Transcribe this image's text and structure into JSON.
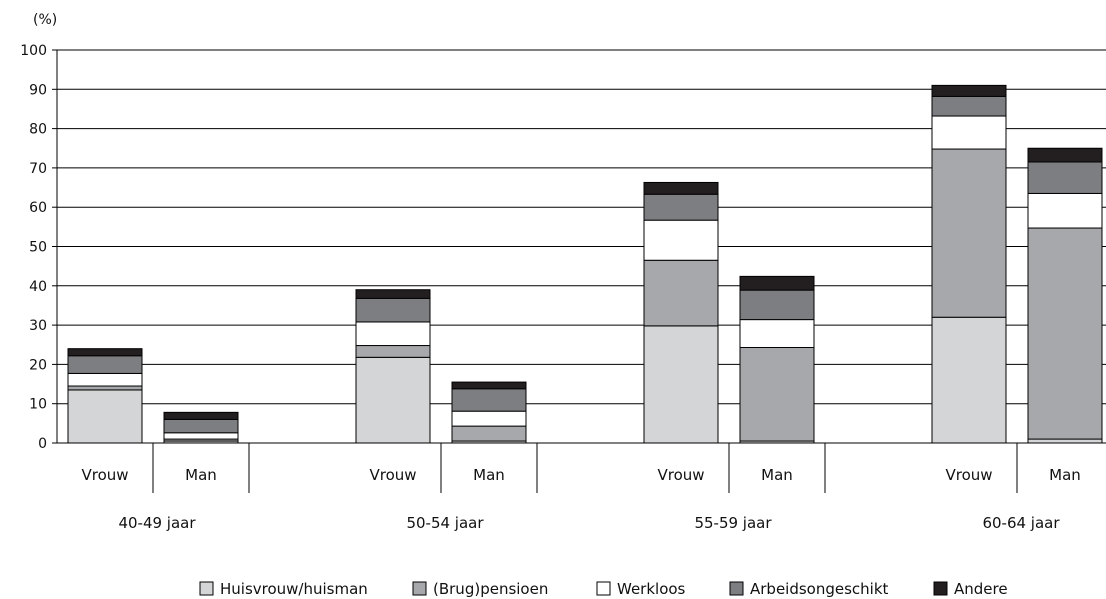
{
  "chart_data": {
    "type": "bar",
    "stacked": true,
    "y_unit_label": "(%)",
    "ylim": [
      0,
      100
    ],
    "y_ticks": [
      0,
      10,
      20,
      30,
      40,
      50,
      60,
      70,
      80,
      90,
      100
    ],
    "grid": true,
    "legend_position": "bottom",
    "groups": [
      "40-49 jaar",
      "50-54 jaar",
      "55-59 jaar",
      "60-64 jaar"
    ],
    "categories": [
      "Vrouw",
      "Man",
      "Vrouw",
      "Man",
      "Vrouw",
      "Man",
      "Vrouw",
      "Man"
    ],
    "series": [
      {
        "name": "Huisvrouw/huisman",
        "color": "#d4d5d7",
        "values": [
          13.5,
          0.5,
          21.8,
          0.5,
          29.8,
          0.5,
          32.0,
          1.0
        ]
      },
      {
        "name": "(Brug)pensioen",
        "color": "#a7a8ab",
        "values": [
          1.0,
          0.5,
          3.0,
          3.8,
          16.7,
          23.8,
          42.8,
          53.7
        ]
      },
      {
        "name": "Werkloos",
        "color": "#ffffff",
        "values": [
          3.2,
          1.6,
          6.0,
          3.8,
          10.2,
          7.1,
          8.4,
          8.8
        ]
      },
      {
        "name": "Arbeidsongeschikt",
        "color": "#7d7e81",
        "values": [
          4.5,
          3.4,
          6.0,
          5.7,
          6.6,
          7.5,
          5.0,
          8.0
        ]
      },
      {
        "name": "Andere",
        "color": "#231f20",
        "values": [
          1.8,
          1.8,
          2.2,
          1.7,
          3.0,
          3.5,
          2.8,
          3.5
        ]
      }
    ]
  }
}
